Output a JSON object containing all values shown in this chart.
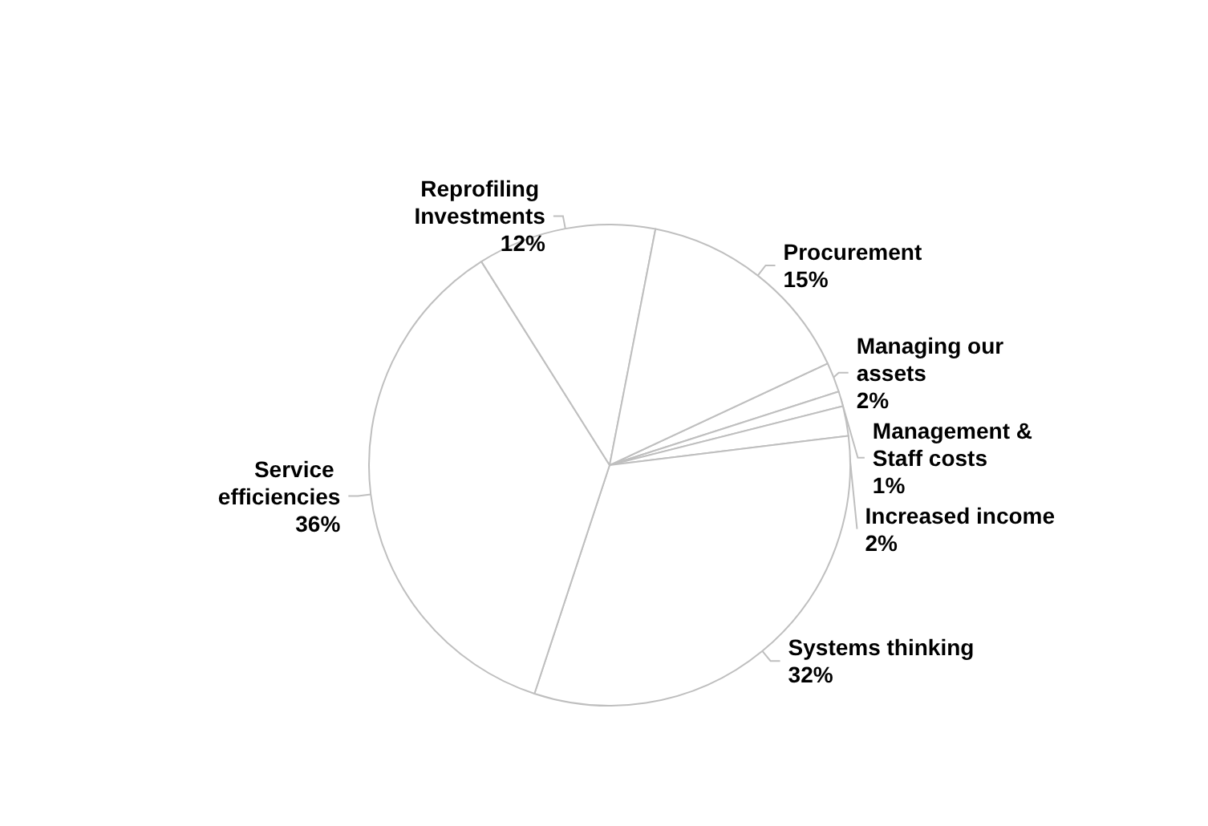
{
  "chart_data": {
    "type": "pie",
    "categories": [
      "Managing our assets",
      "Management & Staff costs",
      "Increased income",
      "Systems thinking",
      "Service efficiencies",
      "Reprofiling Investments",
      "Procurement"
    ],
    "values": [
      2,
      1,
      2,
      32,
      36,
      12,
      15
    ],
    "value_labels": [
      "2%",
      "1%",
      "2%",
      "32%",
      "36%",
      "12%",
      "15%"
    ],
    "colors": [
      "#ffffff",
      "#ffffff",
      "#ffffff",
      "#ffffff",
      "#ffffff",
      "#ffffff",
      "#ffffff"
    ],
    "legend": false
  }
}
